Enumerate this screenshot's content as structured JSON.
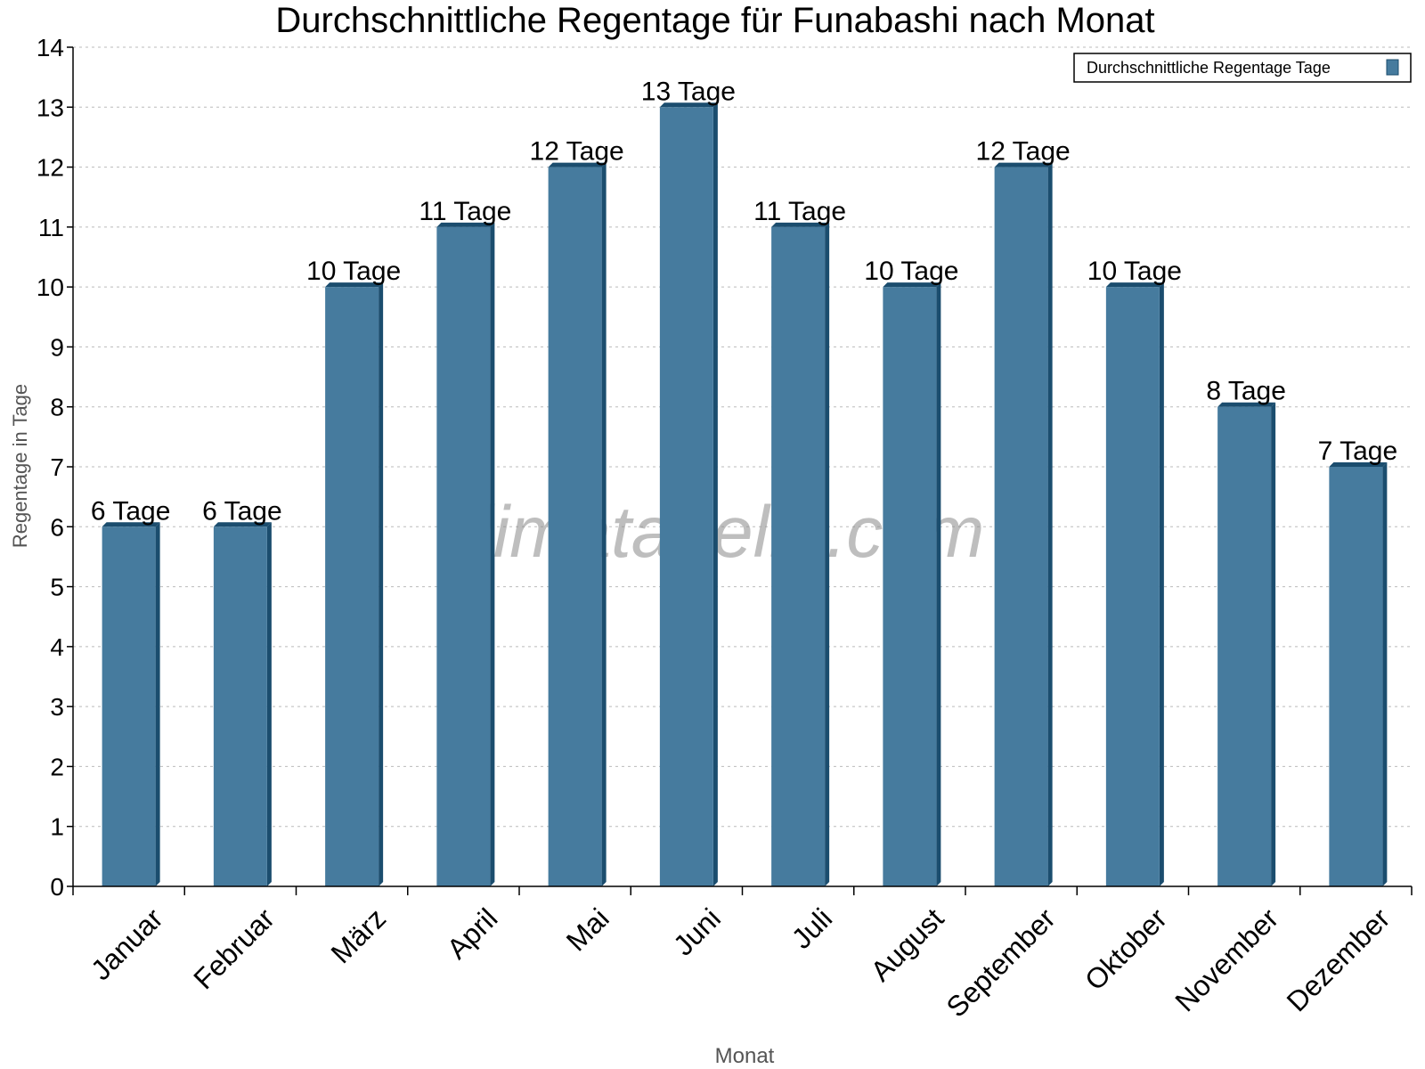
{
  "chart_data": {
    "type": "bar",
    "title": "Durchschnittliche Regentage für Funabashi nach Monat",
    "xlabel": "Monat",
    "ylabel": "Regentage in Tage",
    "ylim": [
      0,
      14
    ],
    "yticks": [
      "0",
      "1",
      "2",
      "3",
      "4",
      "5",
      "6",
      "7",
      "8",
      "9",
      "10",
      "11",
      "12",
      "13",
      "14"
    ],
    "grid": true,
    "legend_position": "top-right",
    "categories": [
      "Januar",
      "Februar",
      "März",
      "April",
      "Mai",
      "Juni",
      "Juli",
      "August",
      "September",
      "Oktober",
      "November",
      "Dezember"
    ],
    "series": [
      {
        "name": "Durchschnittliche Regentage Tage",
        "values": [
          6,
          6,
          10,
          11,
          12,
          13,
          11,
          10,
          12,
          10,
          8,
          7
        ],
        "labels": [
          "6 Tage",
          "6 Tage",
          "10 Tage",
          "11 Tage",
          "12 Tage",
          "13 Tage",
          "11 Tage",
          "10 Tage",
          "12 Tage",
          "10 Tage",
          "8 Tage",
          "7 Tage"
        ],
        "color": "#467b9e",
        "side_color": "#1b4d6e"
      }
    ],
    "watermark": "klimatabelle.com"
  }
}
